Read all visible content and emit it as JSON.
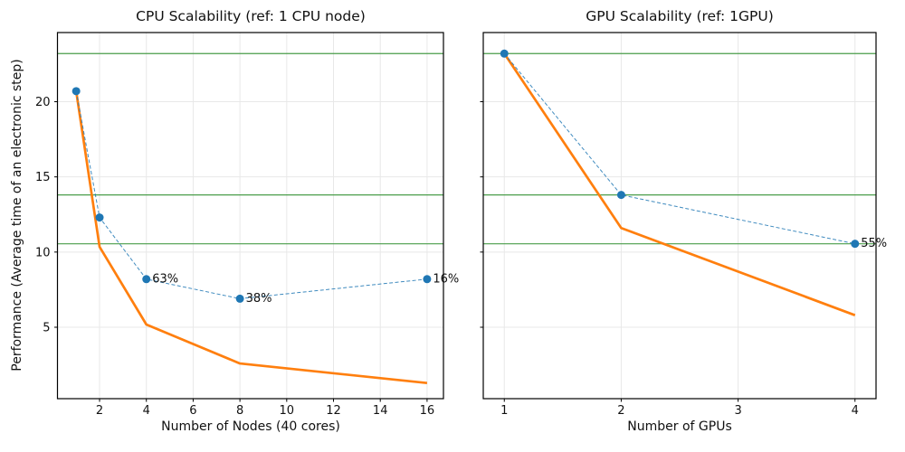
{
  "figure": {
    "background": "#ffffff"
  },
  "colors": {
    "measured": "#1f77b4",
    "ideal": "#ff7f0e",
    "reference_line": "#4a9d4a",
    "grid": "#e8e8e8",
    "axis": "#000000",
    "text": "#111111"
  },
  "ylabel_shared": "Performance (Average time of an electronic step)",
  "chart_data": [
    {
      "type": "line",
      "title": "CPU Scalability (ref: 1 CPU node)",
      "xlabel": "Number of Nodes (40 cores)",
      "ylabel": "Performance (Average time of an electronic step)",
      "x": [
        1,
        2,
        4,
        8,
        16
      ],
      "series": [
        {
          "name": "measured",
          "style": "dashed-markers",
          "values": [
            20.7,
            12.3,
            8.2,
            6.9,
            8.2
          ]
        },
        {
          "name": "ideal",
          "style": "solid",
          "values": [
            20.7,
            10.35,
            5.18,
            2.59,
            1.29
          ]
        }
      ],
      "point_labels": [
        {
          "x": 4,
          "y": 8.2,
          "text": "63%"
        },
        {
          "x": 8,
          "y": 6.9,
          "text": "38%"
        },
        {
          "x": 16,
          "y": 8.2,
          "text": "16%"
        }
      ],
      "hlines": [
        23.2,
        13.8,
        10.55
      ],
      "xticks": [
        2,
        4,
        6,
        8,
        10,
        12,
        14,
        16
      ],
      "yticks": [
        5,
        10,
        15,
        20
      ],
      "xlim": [
        0.2,
        16.7
      ],
      "ylim": [
        0.25,
        24.6
      ],
      "grid": true,
      "legend": "none",
      "show_ytick_labels": true
    },
    {
      "type": "line",
      "title": "GPU Scalability (ref: 1GPU)",
      "xlabel": "Number of GPUs",
      "x": [
        1,
        2,
        4
      ],
      "series": [
        {
          "name": "measured",
          "style": "dashed-markers",
          "values": [
            23.2,
            13.8,
            10.55
          ]
        },
        {
          "name": "ideal",
          "style": "solid",
          "values": [
            23.2,
            11.6,
            5.8
          ]
        }
      ],
      "point_labels": [
        {
          "x": 4,
          "y": 10.55,
          "text": "55%"
        }
      ],
      "hlines": [
        23.2,
        13.8,
        10.55
      ],
      "xticks": [
        1,
        2,
        3,
        4
      ],
      "yticks": [
        5,
        10,
        15,
        20
      ],
      "xlim": [
        0.82,
        4.18
      ],
      "ylim": [
        0.25,
        24.6
      ],
      "grid": true,
      "legend": "none",
      "show_ytick_labels": false
    }
  ]
}
